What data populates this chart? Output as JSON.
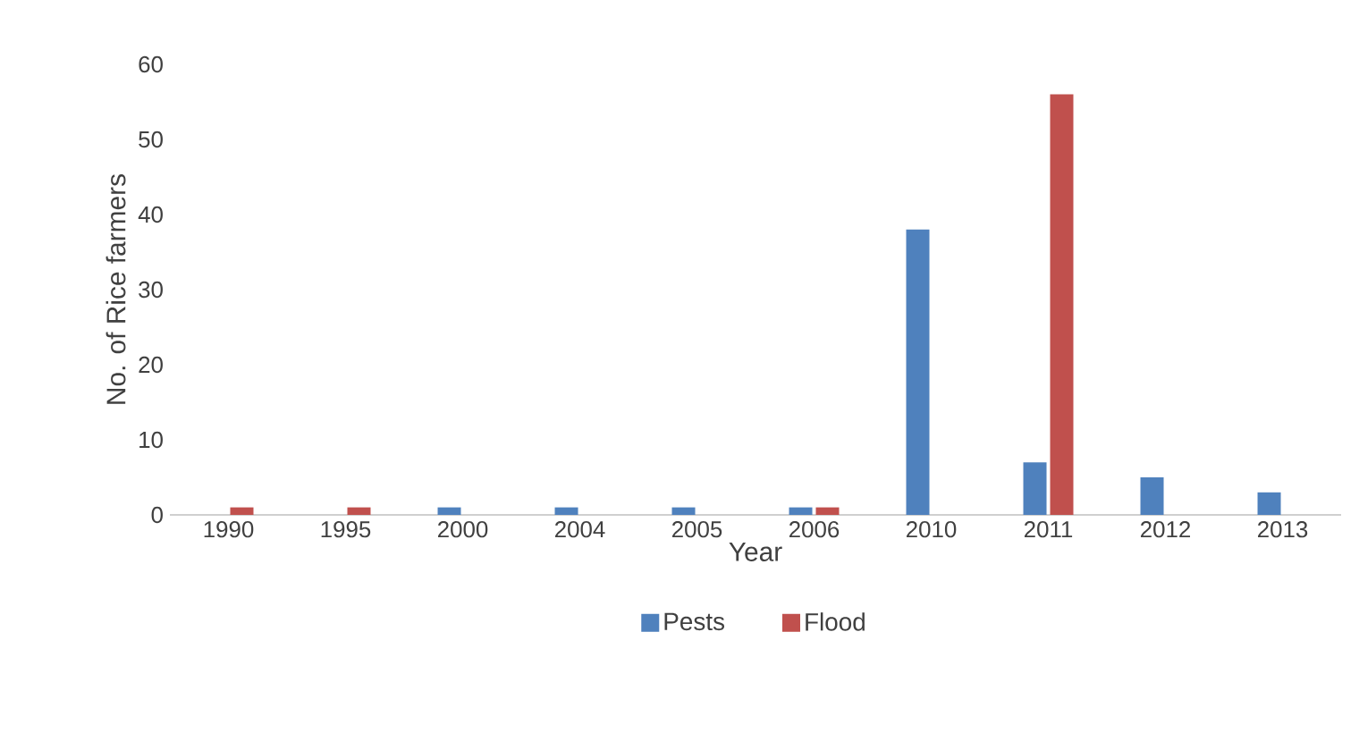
{
  "chart_data": {
    "type": "bar",
    "xlabel": "Year",
    "ylabel": "No. of Rice farmers",
    "categories": [
      "1990",
      "1995",
      "2000",
      "2004",
      "2005",
      "2006",
      "2010",
      "2011",
      "2012",
      "2013"
    ],
    "series": [
      {
        "name": "Pests",
        "color": "#4f81bd",
        "values": [
          0,
          0,
          1,
          1,
          1,
          1,
          38,
          7,
          5,
          3
        ]
      },
      {
        "name": "Flood",
        "color": "#c0504d",
        "values": [
          1,
          1,
          0,
          0,
          0,
          1,
          0,
          56,
          0,
          0
        ]
      }
    ],
    "ylim": [
      0,
      60
    ],
    "yticks": [
      0,
      10,
      20,
      30,
      40,
      50,
      60
    ],
    "legend": "bottom",
    "grid": false
  }
}
